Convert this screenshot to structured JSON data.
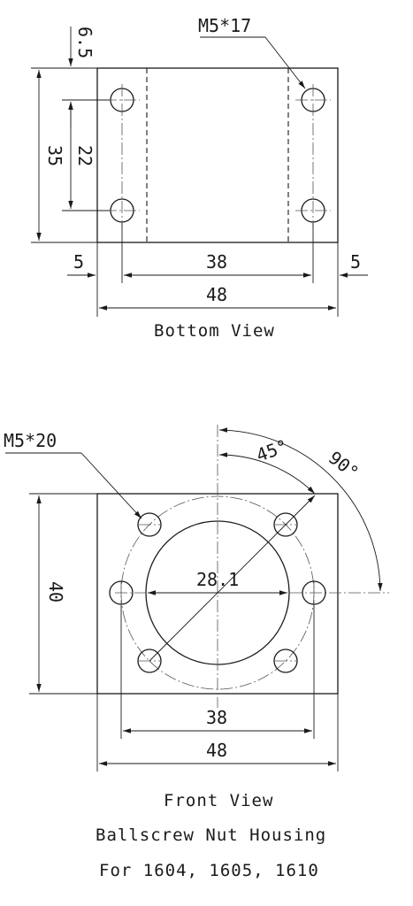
{
  "bottom_view": {
    "caption": "Bottom View",
    "hole_callout": "M5*17",
    "dims": {
      "edge_offset": "6.5",
      "overall_height": "35",
      "hole_spacing_v": "22",
      "left_margin": "5",
      "hole_spacing_h": "38",
      "right_margin": "5",
      "overall_width": "48"
    }
  },
  "front_view": {
    "caption": "Front View",
    "hole_callout": "M5*20",
    "dims": {
      "overall_height": "40",
      "bore_diameter": "28.1",
      "hole_spacing_h": "38",
      "overall_width": "48",
      "angle_small": "45°",
      "angle_large": "90°"
    }
  },
  "title": {
    "line1": "Ballscrew Nut Housing",
    "line2": "For 1604, 1605, 1610"
  }
}
